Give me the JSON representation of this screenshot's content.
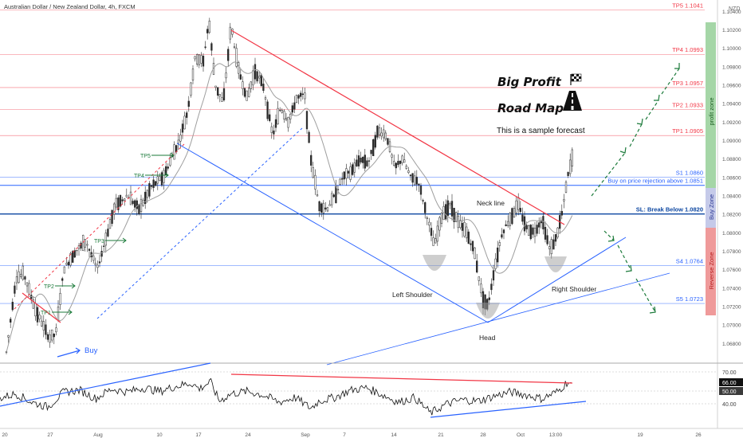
{
  "chart_data": {
    "type": "candlestick",
    "title": "Australian Dollar / New Zealand Dollar, 4h, FXCM",
    "currency_label": "NZD",
    "y_range": [
      1.066,
      1.1045
    ],
    "y_ticks": [
      "1.10400",
      "1.10200",
      "1.10000",
      "1.09800",
      "1.09600",
      "1.09400",
      "1.09200",
      "1.09000",
      "1.08800",
      "1.08600",
      "1.08400",
      "1.08200",
      "1.08000",
      "1.07800",
      "1.07600",
      "1.07400",
      "1.07200",
      "1.07000",
      "1.06800"
    ],
    "x_ticks": [
      "20",
      "27",
      "Aug",
      "10",
      "17",
      "24",
      "Sep",
      "7",
      "14",
      "21",
      "28",
      "Oct",
      "13:00",
      "19",
      "26"
    ],
    "levels": [
      {
        "label": "TP5 1.1041",
        "value": 1.1041,
        "color": "#f23645"
      },
      {
        "label": "TP4 1.0993",
        "value": 1.0993,
        "color": "#f23645"
      },
      {
        "label": "TP3 1.0957",
        "value": 1.0957,
        "color": "#f23645"
      },
      {
        "label": "TP2 1.0933",
        "value": 1.0933,
        "color": "#f23645"
      },
      {
        "label": "TP1 1.0905",
        "value": 1.0905,
        "color": "#f23645"
      },
      {
        "label": "S1 1.0860",
        "value": 1.086,
        "color": "#2962ff"
      },
      {
        "label": "Buy on price rejection above 1.0851",
        "value": 1.0851,
        "color": "#2962ff"
      },
      {
        "label": "SL: Break Below 1.0820",
        "value": 1.082,
        "color": "#0d47a1"
      },
      {
        "label": "S4 1.0764",
        "value": 1.0764,
        "color": "#2962ff"
      },
      {
        "label": "S5 1.0723",
        "value": 1.0723,
        "color": "#2962ff"
      }
    ],
    "annotations": {
      "title_line1": "Big Profit",
      "title_line2": "Road Map",
      "subtitle": "This is a sample forecast",
      "neck_line": "Neck line",
      "left_shoulder": "Left Shoulder",
      "head": "Head",
      "right_shoulder": "Right Shoulder",
      "buy": "Buy",
      "tp_markers": [
        "TP1",
        "TP2",
        "TP3",
        "TP4",
        "TP5"
      ]
    },
    "zones": {
      "profit": "profit zone",
      "buy": "Buy Zone",
      "reverse": "Reverse Zone"
    },
    "oscillator": {
      "ticks": [
        "70.00",
        "50.00",
        "40.00"
      ],
      "current": "66.00"
    },
    "colors": {
      "bull": "#2a2a2a",
      "bear": "#2a2a2a",
      "red": "#f23645",
      "blue": "#2962ff",
      "green": "#1b7a3a",
      "profit_zone": "#a5d6a7",
      "buy_zone": "#c5cae9",
      "reverse_zone": "#ef9a9a"
    }
  }
}
